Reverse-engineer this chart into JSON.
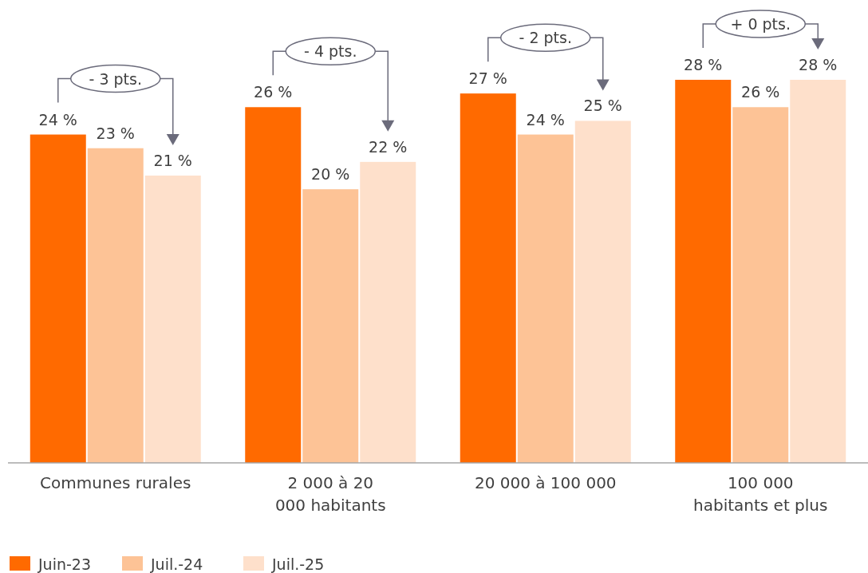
{
  "chart_data": {
    "type": "bar",
    "categories": [
      "Communes rurales",
      "2 000 à 20\n000 habitants",
      "20 000 à 100 000",
      "100 000\nhabitants et plus"
    ],
    "series": [
      {
        "name": "Juin-23",
        "color": "#ff6a00",
        "values": [
          24,
          26,
          27,
          28
        ],
        "value_labels": [
          "24 %",
          "26 %",
          "27 %",
          "28 %"
        ]
      },
      {
        "name": "Juil.-24",
        "color": "#fdc396",
        "values": [
          23,
          20,
          24,
          26
        ],
        "value_labels": [
          "23 %",
          "20 %",
          "24 %",
          "26 %"
        ]
      },
      {
        "name": "Juil.-25",
        "color": "#fee0cb",
        "values": [
          21,
          22,
          25,
          28
        ],
        "value_labels": [
          "21 %",
          "22 %",
          "25 %",
          "28 %"
        ]
      }
    ],
    "ylim": [
      0,
      28
    ],
    "tick_labels": "x",
    "legend": "bottom left",
    "annotations": [
      "- 3 pts.",
      "- 4 pts.",
      "- 2 pts.",
      "+ 0 pts."
    ]
  }
}
